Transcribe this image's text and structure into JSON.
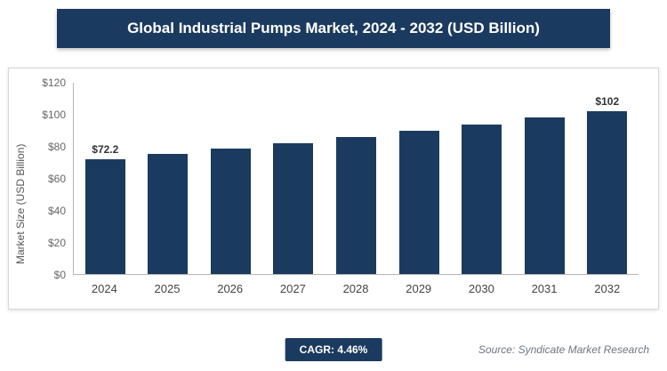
{
  "title": "Global Industrial Pumps Market, 2024 - 2032 (USD Billion)",
  "chart_data": {
    "type": "bar",
    "title": "Global Industrial Pumps Market, 2024 - 2032 (USD Billion)",
    "categories": [
      "2024",
      "2025",
      "2026",
      "2027",
      "2028",
      "2029",
      "2030",
      "2031",
      "2032"
    ],
    "values": [
      72.2,
      75.4,
      78.8,
      82.3,
      85.9,
      89.8,
      93.8,
      98.0,
      102
    ],
    "xlabel": "",
    "ylabel": "Market Size (USD Billion)",
    "ylim": [
      0,
      120
    ],
    "yticks": [
      "$0",
      "$20",
      "$40",
      "$60",
      "$80",
      "$100",
      "$120"
    ],
    "grid": false,
    "legend": "none",
    "bar_color": "#1b3a5f",
    "data_labels": {
      "first": "$72.2",
      "last": "$102"
    }
  },
  "footer": {
    "cagr_label": "CAGR: 4.46%",
    "source": "Source: Syndicate Market Research"
  },
  "colors": {
    "banner_bg": "#1b3a5f",
    "banner_text": "#ffffff",
    "bar": "#1b3a5f"
  }
}
